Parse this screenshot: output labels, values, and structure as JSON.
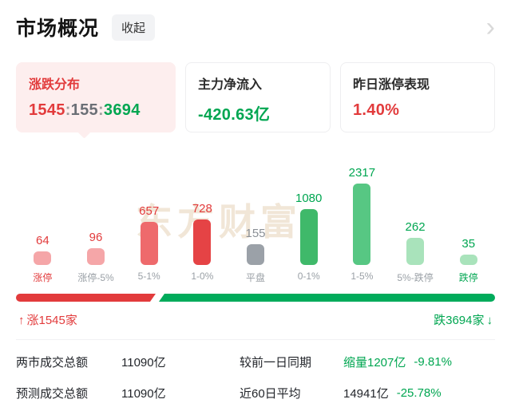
{
  "header": {
    "title": "市场概况",
    "collapse_label": "收起",
    "chevron": "›"
  },
  "cards": [
    {
      "title": "涨跌分布",
      "up": "1545",
      "sep": ":",
      "flat": "155",
      "down": "3694"
    },
    {
      "title": "主力净流入",
      "value": "-420.63亿"
    },
    {
      "title": "昨日涨停表现",
      "value": "1.40%"
    }
  ],
  "watermark": "东方财富",
  "chart_data": {
    "type": "bar",
    "title": "涨跌分布",
    "categories": [
      "涨停",
      "涨停-5%",
      "5-1%",
      "1-0%",
      "平盘",
      "0-1%",
      "1-5%",
      "5%-跌停",
      "跌停"
    ],
    "values": [
      64,
      96,
      657,
      728,
      155,
      1080,
      2317,
      262,
      35
    ],
    "bar_colors": [
      "#f5a6a8",
      "#f5a6a8",
      "#ee6a6c",
      "#e54345",
      "#9ba1a8",
      "#3fb96a",
      "#57c783",
      "#a9e3bb",
      "#a9e3bb"
    ],
    "value_colors": [
      "#e23b3c",
      "#e23b3c",
      "#e23b3c",
      "#e23b3c",
      "#8b9096",
      "#00a651",
      "#00a651",
      "#00a651",
      "#00a651"
    ],
    "label_colors": [
      "#e23b3c",
      "#9aa0a6",
      "#9aa0a6",
      "#9aa0a6",
      "#9aa0a6",
      "#9aa0a6",
      "#9aa0a6",
      "#9aa0a6",
      "#00a651"
    ],
    "xlabel": "",
    "ylabel": "",
    "grid": false,
    "legend": false
  },
  "ratio": {
    "up_pct": 29.5,
    "up_arrow": "↑",
    "down_arrow": "↓",
    "up_count_label": "涨1545家",
    "down_count_label": "跌3694家"
  },
  "summary": [
    {
      "label": "两市成交总额",
      "value": "11090亿",
      "label2": "较前一日同期",
      "value2": "缩量1207亿",
      "pct": "-9.81%"
    },
    {
      "label": "预测成交总额",
      "value": "11090亿",
      "label2": "近60日平均",
      "value2": "14941亿",
      "pct": "-25.78%"
    }
  ],
  "colors": {
    "red": "#e23b3c",
    "green": "#00a651",
    "flat_gray": "#9ba1a8"
  }
}
